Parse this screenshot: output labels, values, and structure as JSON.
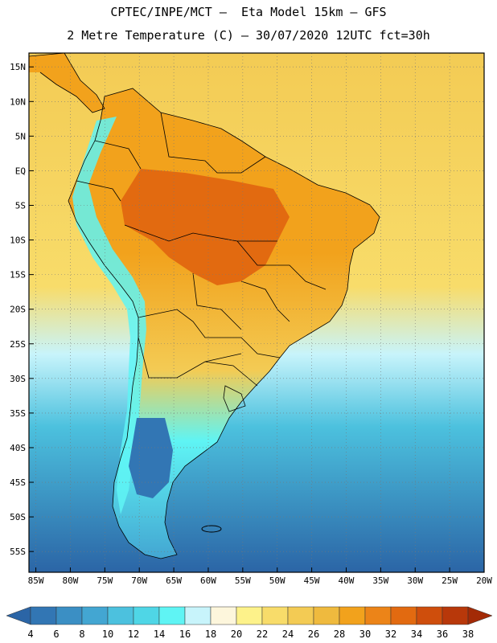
{
  "header": {
    "line1": "CPTEC/INPE/MCT –  Eta Model 15km – GFS",
    "line2": "2 Metre Temperature (C) – 30/07/2020 12UTC fct=30h"
  },
  "axes": {
    "lat_labels": [
      "15N",
      "10N",
      "5N",
      "EQ",
      "5S",
      "10S",
      "15S",
      "20S",
      "25S",
      "30S",
      "35S",
      "40S",
      "45S",
      "50S",
      "55S"
    ],
    "lon_labels": [
      "85W",
      "80W",
      "75W",
      "70W",
      "65W",
      "60W",
      "55W",
      "50W",
      "45W",
      "40W",
      "35W",
      "30W",
      "25W",
      "20W"
    ]
  },
  "colorbar": {
    "labels": [
      "4",
      "6",
      "8",
      "10",
      "12",
      "14",
      "16",
      "18",
      "20",
      "22",
      "24",
      "26",
      "28",
      "30",
      "32",
      "34",
      "36",
      "38"
    ],
    "colors": [
      "#2b65a6",
      "#3276b4",
      "#3b8fc4",
      "#43a6d2",
      "#4cc1de",
      "#4fd6e6",
      "#5ff4f4",
      "#c8f4fb",
      "#fdf6dc",
      "#fdf28a",
      "#f8dc6a",
      "#f3cb54",
      "#efba3e",
      "#f2a21c",
      "#ec8418",
      "#e26a10",
      "#cf4e0c",
      "#b8380a",
      "#a32a06"
    ]
  },
  "map": {
    "ocean_south": "#2b65a6",
    "ocean_mid": "#4cc1de",
    "ocean_north": "#f3cb54",
    "land_hot": "#e26a10",
    "land_warm": "#f2a21c",
    "andes": "#5ff4f4"
  }
}
